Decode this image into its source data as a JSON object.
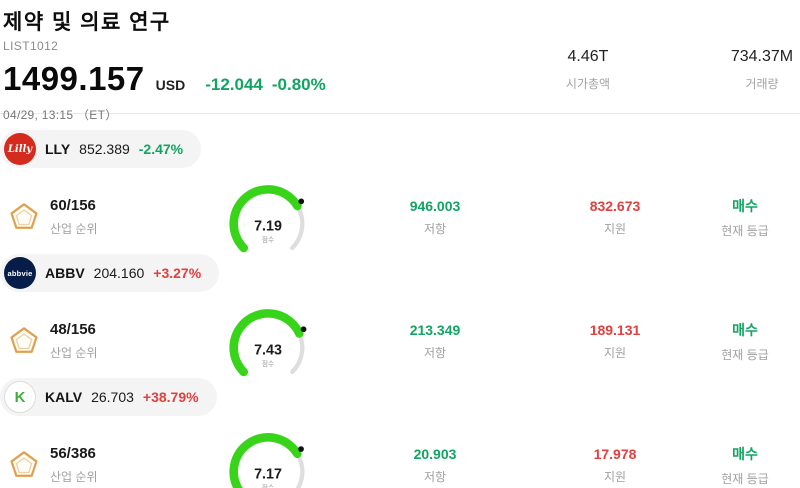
{
  "header": {
    "title": "제약 및 의료 연구",
    "list_id": "LIST1012",
    "price": "1499.157",
    "currency": "USD",
    "change_abs": "-12.044",
    "change_pct": "-0.80%",
    "change_dir": "down",
    "datetime": "04/29, 13:15 （ET）",
    "market_cap_value": "4.46T",
    "market_cap_label": "시가총액",
    "volume_value": "734.37M",
    "volume_label": "거래량"
  },
  "labels": {
    "industry_rank": "산업 순위",
    "score": "점수",
    "resistance": "저항",
    "support": "지원",
    "current_rating": "현재 등급"
  },
  "colors": {
    "positive_red": "#e0403f",
    "negative_green": "#12a463",
    "gauge_fill": "#38d41a",
    "gauge_rest": "#dedede",
    "gauge_needle": "#111111"
  },
  "stocks": [
    {
      "ticker": "LLY",
      "price": "852.389",
      "change": "-2.47%",
      "direction": "down",
      "logo_text": "Lilly",
      "logo_bg": "#d52b1e",
      "logo_fg": "#ffffff",
      "logo_style": "script",
      "rank": "60/156",
      "score": "7.19",
      "score_max": 10,
      "resistance": "946.003",
      "support": "832.673",
      "rating": "매수"
    },
    {
      "ticker": "ABBV",
      "price": "204.160",
      "change": "+3.27%",
      "direction": "up",
      "logo_text": "abbvie",
      "logo_bg": "#071d49",
      "logo_fg": "#ffffff",
      "logo_style": "sans",
      "rank": "48/156",
      "score": "7.43",
      "score_max": 10,
      "resistance": "213.349",
      "support": "189.131",
      "rating": "매수"
    },
    {
      "ticker": "KALV",
      "price": "26.703",
      "change": "+38.79%",
      "direction": "up",
      "logo_text": "K",
      "logo_bg": "#ffffff",
      "logo_fg": "#3fae3a",
      "logo_style": "kalv",
      "rank": "56/386",
      "score": "7.17",
      "score_max": 10,
      "resistance": "20.903",
      "support": "17.978",
      "rating": "매수"
    }
  ]
}
